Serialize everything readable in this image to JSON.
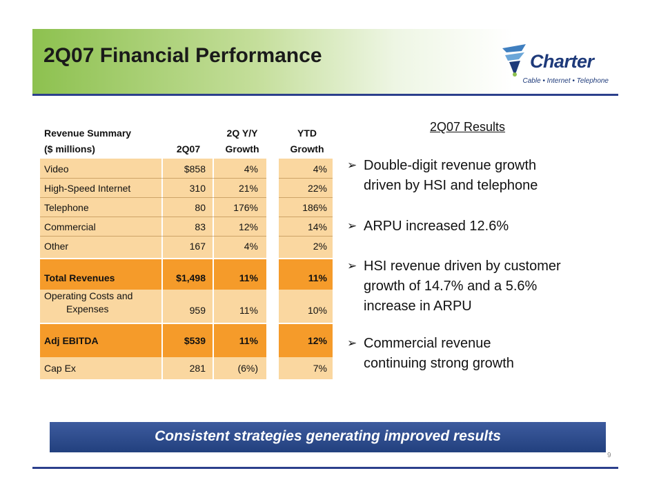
{
  "slide": {
    "title": "2Q07 Financial Performance",
    "page_number": "9"
  },
  "logo": {
    "name": "Charter",
    "tagline": "Cable • Internet • Telephone"
  },
  "table": {
    "headers": {
      "label_line1": "Revenue Summary",
      "label_line2": "($ millions)",
      "q": "2Q07",
      "yoy_line1": "2Q Y/Y",
      "yoy_line2": "Growth",
      "ytd_line1": "YTD",
      "ytd_line2": "Growth"
    },
    "rows": [
      {
        "label": "Video",
        "value": "$858",
        "yoy": "4%",
        "ytd": "4%"
      },
      {
        "label": "High-Speed Internet",
        "value": "310",
        "yoy": "21%",
        "ytd": "22%"
      },
      {
        "label": "Telephone",
        "value": "80",
        "yoy": "176%",
        "ytd": "186%"
      },
      {
        "label": "Commercial",
        "value": "83",
        "yoy": "12%",
        "ytd": "14%"
      },
      {
        "label": "Other",
        "value": "167",
        "yoy": "4%",
        "ytd": "2%"
      },
      {
        "label": "Total Revenues",
        "value": "$1,498",
        "yoy": "11%",
        "ytd": "11%"
      },
      {
        "label_line1": "Operating Costs and",
        "label_line2": "Expenses",
        "value": "959",
        "yoy": "11%",
        "ytd": "10%"
      },
      {
        "label": "Adj EBITDA",
        "value": "$539",
        "yoy": "11%",
        "ytd": "12%"
      },
      {
        "label": "Cap Ex",
        "value": "281",
        "yoy": "(6%)",
        "ytd": "7%"
      }
    ]
  },
  "results": {
    "title": "2Q07 Results",
    "bullets": [
      {
        "line1": "Double-digit revenue growth",
        "line2": "driven by HSI and telephone"
      },
      {
        "line1": "ARPU increased 12.6%"
      },
      {
        "line1": "HSI revenue driven by customer",
        "line2": "growth of 14.7% and a 5.6%",
        "line3": "increase in ARPU"
      },
      {
        "line1": "Commercial revenue",
        "line2": "continuing strong growth"
      }
    ],
    "arrow_glyph": "➢"
  },
  "banner": {
    "text": "Consistent strategies generating improved results"
  },
  "colors": {
    "accent_green": "#8dc14f",
    "rule_blue": "#2b3f8c",
    "band_light": "#fad7a0",
    "band_dark": "#f59b2a",
    "banner_blue": "#22407e"
  }
}
